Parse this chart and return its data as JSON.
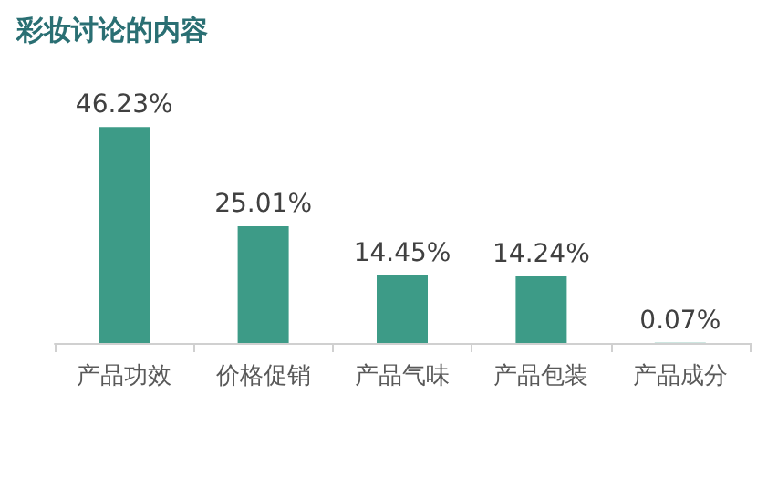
{
  "chart_data": {
    "type": "bar",
    "title": "彩妆讨论的内容",
    "categories": [
      "产品功效",
      "价格促销",
      "产品气味",
      "产品包装",
      "产品成分"
    ],
    "values": [
      46.23,
      25.01,
      14.45,
      14.24,
      0.07
    ],
    "value_labels": [
      "46.23%",
      "25.01%",
      "14.45%",
      "14.24%",
      "0.07%"
    ],
    "color": "#3d9b87"
  }
}
